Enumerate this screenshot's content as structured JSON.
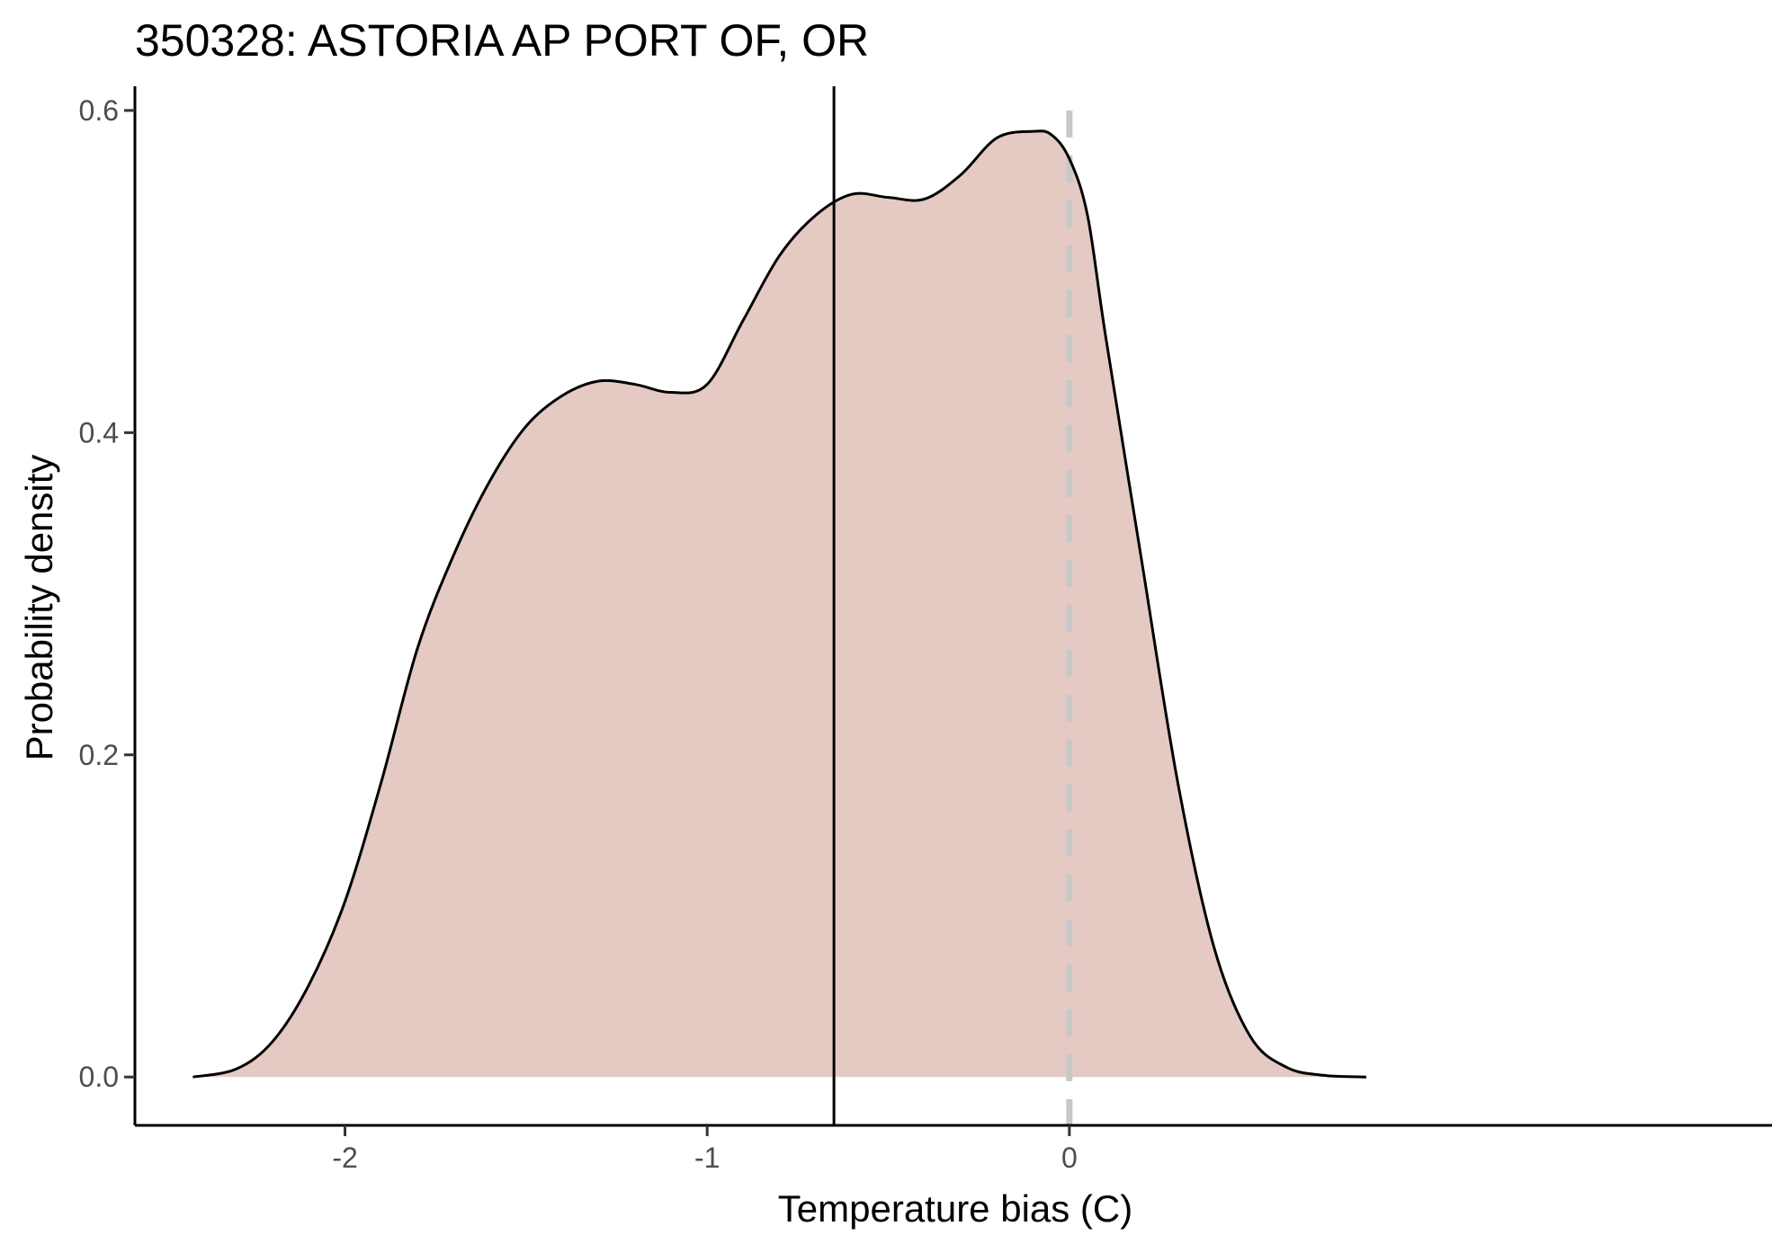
{
  "chart_data": {
    "type": "area",
    "title": "350328: ASTORIA AP PORT OF, OR",
    "xlabel": "Temperature bias (C)",
    "ylabel": "Probability density",
    "xlim": [
      -2.58,
      1.94
    ],
    "ylim": [
      -0.03,
      0.615
    ],
    "x_ticks": [
      -2,
      -1,
      0
    ],
    "x_tick_labels": [
      "-2",
      "-1",
      "0"
    ],
    "y_ticks": [
      0.0,
      0.2,
      0.4,
      0.6
    ],
    "y_tick_labels": [
      "0.0",
      "0.2",
      "0.4",
      "0.6"
    ],
    "grid": false,
    "legend": "none",
    "fill_color": "#e4cac2",
    "line_color": "#000000",
    "series": [
      {
        "x": [
          -2.42,
          -2.3,
          -2.2,
          -2.1,
          -2.0,
          -1.9,
          -1.8,
          -1.7,
          -1.6,
          -1.5,
          -1.4,
          -1.3,
          -1.2,
          -1.1,
          -1.0,
          -0.9,
          -0.8,
          -0.7,
          -0.6,
          -0.5,
          -0.4,
          -0.3,
          -0.2,
          -0.1,
          -0.05,
          0.0,
          0.05,
          0.1,
          0.2,
          0.3,
          0.4,
          0.5,
          0.6,
          0.7,
          0.8,
          0.82
        ],
        "y": [
          0.0,
          0.005,
          0.022,
          0.057,
          0.109,
          0.183,
          0.266,
          0.324,
          0.37,
          0.404,
          0.423,
          0.432,
          0.43,
          0.425,
          0.43,
          0.47,
          0.51,
          0.535,
          0.548,
          0.546,
          0.545,
          0.56,
          0.583,
          0.587,
          0.585,
          0.57,
          0.535,
          0.46,
          0.32,
          0.182,
          0.08,
          0.025,
          0.006,
          0.0011,
          0.0001,
          0.0
        ]
      }
    ],
    "annotations": {
      "mean_line_x": -0.65,
      "reference_line_x": 0,
      "reference_line_style": "dashed",
      "reference_line_color": "#c8c8c8"
    }
  }
}
